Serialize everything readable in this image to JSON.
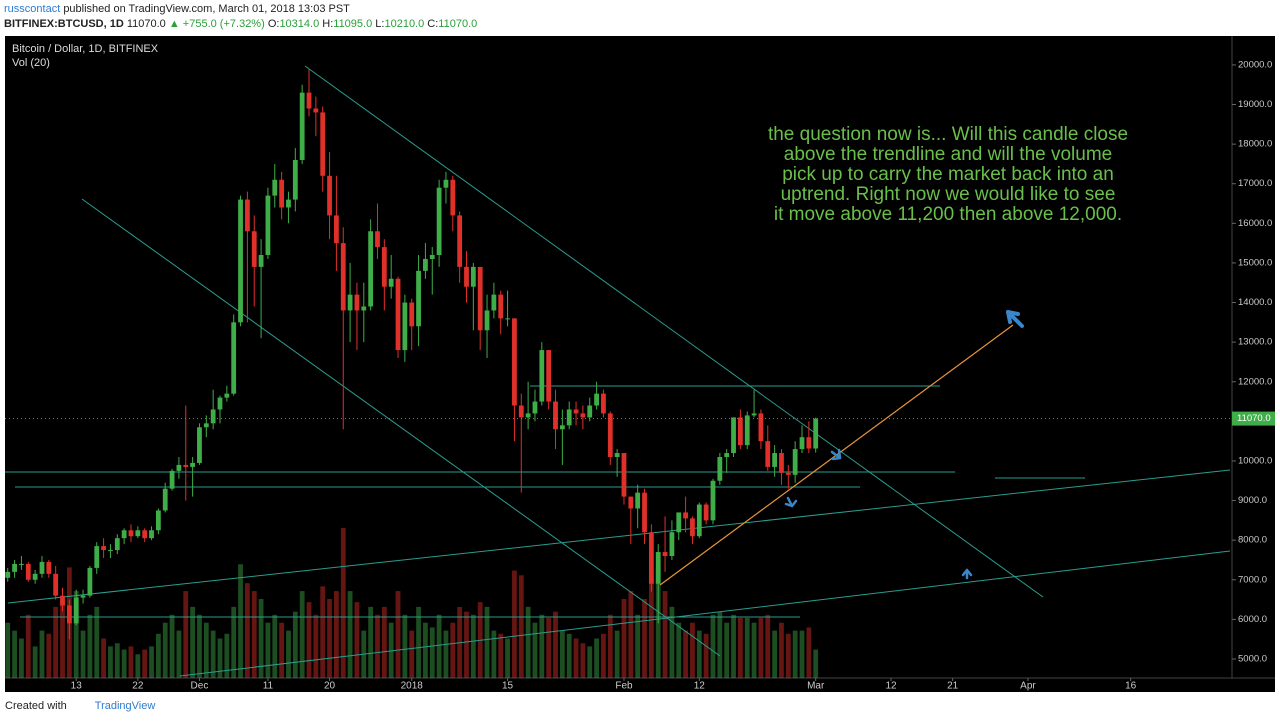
{
  "header": {
    "author": "russcontact",
    "published": "published on TradingView.com, March 01, 2018 13:03 PST",
    "symbol": "BITFINEX:BTCUSD, 1D",
    "price": "11070.0",
    "change": "▲ +755.0 (+7.32%)",
    "o_label": "O:",
    "o_value": "10314.0",
    "h_label": "H:",
    "h_value": "11095.0",
    "l_label": "L:",
    "l_value": "10210.0",
    "c_label": "C:",
    "c_value": "11070.0"
  },
  "footer": {
    "created": "Created with",
    "brand": "TradingView"
  },
  "chart_data": {
    "type": "candlestick",
    "title": "Bitcoin / Dollar, 1D, BITFINEX",
    "volume_label": "Vol (20)",
    "annotation": [
      "the question now is...  Will this candle close",
      "above the trendline and will the volume",
      "pick up to carry the market back into an",
      "uptrend.  Right now we would like to see",
      "it move above 11,200 then above 12,000."
    ],
    "up_color": "#3fae49",
    "down_color": "#e0302a",
    "open": [
      7050,
      7200,
      7400,
      7400,
      7000,
      7150,
      7450,
      7150,
      6600,
      6350,
      5900,
      6550,
      6600,
      7300,
      7850,
      7750,
      7750,
      8050,
      8250,
      8100,
      8250,
      8050,
      8250,
      8750,
      9300,
      9750,
      9900,
      9850,
      9950,
      10850,
      10950,
      11300,
      11600,
      11700,
      13500,
      16600,
      15800,
      14900,
      15200,
      16700,
      17100,
      16400,
      16600,
      17600,
      19300,
      18900,
      18800,
      17200,
      16200,
      15500,
      13800,
      14200,
      13800,
      13900,
      15800,
      15400,
      14400,
      14600,
      12800,
      14000,
      13400,
      14800,
      15100,
      15200,
      16900,
      17100,
      16200,
      14900,
      14400,
      14900,
      13300,
      13800,
      14200,
      13600,
      13600,
      11400,
      11100,
      11200,
      11500,
      12800,
      11500,
      10800,
      10900,
      11300,
      11200,
      11100,
      11400,
      11700,
      11200,
      10100,
      10200,
      9100,
      8800,
      9200,
      8200,
      6900,
      7700,
      7600,
      8200,
      8700,
      8550,
      8100,
      8900,
      8500,
      9500,
      10100,
      10200,
      11100,
      10400,
      11150,
      11200,
      10500,
      9850,
      10200,
      9700,
      9650,
      10300,
      10600,
      10314
    ],
    "high": [
      7300,
      7500,
      7600,
      7450,
      7250,
      7600,
      7500,
      7350,
      6800,
      6500,
      6750,
      6750,
      7350,
      7950,
      8050,
      7900,
      8150,
      8300,
      8400,
      8350,
      8300,
      8350,
      8800,
      9450,
      9800,
      10100,
      11400,
      10100,
      10950,
      11150,
      11800,
      11650,
      11900,
      13700,
      16700,
      16800,
      16200,
      15600,
      16900,
      17500,
      17300,
      16800,
      17900,
      19500,
      19900,
      19200,
      18950,
      17800,
      17200,
      15900,
      15000,
      14500,
      14500,
      16100,
      16500,
      15600,
      15200,
      14650,
      14200,
      14100,
      15200,
      15500,
      15400,
      17100,
      17300,
      17200,
      16300,
      15300,
      15000,
      14900,
      14200,
      14500,
      14300,
      14300,
      13600,
      11700,
      12000,
      11800,
      13000,
      12800,
      11800,
      11300,
      11500,
      11500,
      11400,
      11600,
      12000,
      11800,
      11250,
      10300,
      10200,
      9100,
      9400,
      9300,
      8400,
      7900,
      8600,
      8500,
      8700,
      9100,
      8600,
      8950,
      8950,
      9550,
      10200,
      10300,
      11100,
      11300,
      11250,
      11800,
      11300,
      10900,
      10400,
      10300,
      9900,
      10500,
      10900,
      11000,
      11095
    ],
    "low": [
      6950,
      7050,
      7250,
      6950,
      6900,
      7050,
      7050,
      6500,
      6200,
      5500,
      5850,
      6400,
      6550,
      7150,
      7550,
      7550,
      7650,
      7900,
      7950,
      8050,
      7950,
      8000,
      8150,
      8700,
      9250,
      9550,
      9000,
      9100,
      9900,
      10600,
      10800,
      10950,
      11500,
      11650,
      13400,
      13500,
      13900,
      13100,
      15100,
      16400,
      16100,
      16000,
      16300,
      17500,
      18700,
      18200,
      16800,
      15600,
      14800,
      10800,
      13000,
      12800,
      13000,
      13800,
      15100,
      13800,
      14100,
      12600,
      12500,
      12800,
      12900,
      14600,
      14200,
      14900,
      16500,
      15800,
      14500,
      14000,
      13300,
      12800,
      12600,
      13600,
      13200,
      13400,
      10500,
      9200,
      10800,
      11000,
      11400,
      11300,
      10300,
      9900,
      10800,
      10900,
      10800,
      11000,
      11300,
      11100,
      9900,
      9600,
      8900,
      7900,
      8300,
      7900,
      6700,
      5900,
      7200,
      7500,
      8000,
      8200,
      7900,
      8050,
      8400,
      8400,
      9400,
      9700,
      10100,
      10300,
      10300,
      11100,
      10300,
      9750,
      9600,
      9400,
      9300,
      9450,
      10200,
      10200,
      10210
    ],
    "close": [
      7200,
      7400,
      7400,
      7000,
      7150,
      7450,
      7150,
      6600,
      6350,
      5900,
      6550,
      6600,
      7300,
      7850,
      7750,
      7750,
      8050,
      8250,
      8100,
      8250,
      8050,
      8250,
      8750,
      9300,
      9750,
      9900,
      9850,
      9950,
      10850,
      10950,
      11300,
      11600,
      11700,
      13500,
      16600,
      15800,
      14900,
      15200,
      16700,
      17100,
      16400,
      16600,
      17600,
      19300,
      18900,
      18800,
      17200,
      16200,
      15500,
      13800,
      14200,
      13800,
      13900,
      15800,
      15400,
      14400,
      14600,
      12800,
      14000,
      13400,
      14800,
      15100,
      15200,
      16900,
      17100,
      16200,
      14900,
      14400,
      14900,
      13300,
      13800,
      14200,
      13600,
      13600,
      11400,
      11100,
      11200,
      11500,
      12800,
      11500,
      10800,
      10900,
      11300,
      11200,
      11100,
      11400,
      11700,
      11200,
      10100,
      10200,
      9100,
      8800,
      9200,
      8200,
      6900,
      7700,
      7600,
      8200,
      8700,
      8550,
      8100,
      8900,
      8500,
      9500,
      10100,
      10200,
      11100,
      10400,
      11150,
      11200,
      10500,
      9850,
      10200,
      9700,
      9650,
      10300,
      10600,
      10314,
      11070
    ],
    "volume": [
      35,
      30,
      25,
      40,
      20,
      30,
      28,
      45,
      50,
      70,
      55,
      30,
      40,
      45,
      25,
      20,
      22,
      18,
      20,
      15,
      18,
      20,
      28,
      35,
      40,
      30,
      55,
      45,
      40,
      35,
      30,
      25,
      28,
      45,
      72,
      60,
      55,
      50,
      35,
      40,
      35,
      30,
      42,
      55,
      48,
      40,
      58,
      50,
      55,
      95,
      55,
      48,
      30,
      45,
      40,
      45,
      35,
      55,
      40,
      30,
      45,
      35,
      32,
      40,
      30,
      35,
      45,
      42,
      40,
      48,
      45,
      30,
      28,
      25,
      68,
      65,
      45,
      35,
      40,
      38,
      42,
      30,
      28,
      25,
      22,
      20,
      25,
      28,
      40,
      30,
      50,
      55,
      40,
      50,
      65,
      70,
      55,
      45,
      35,
      30,
      35,
      30,
      28,
      40,
      42,
      35,
      40,
      38,
      38,
      35,
      38,
      40,
      30,
      35,
      28,
      30,
      30,
      32,
      18
    ],
    "vol_ylim": [
      0,
      100
    ],
    "last_price": {
      "value": 11070,
      "label": "11070.0"
    },
    "xlim": [
      -0.4,
      178.8
    ],
    "xticks": [
      {
        "value": 10,
        "label": "13"
      },
      {
        "value": 19,
        "label": "22"
      },
      {
        "value": 28,
        "label": "Dec"
      },
      {
        "value": 38,
        "label": "11"
      },
      {
        "value": 47,
        "label": "20"
      },
      {
        "value": 59,
        "label": "2018"
      },
      {
        "value": 73,
        "label": "15"
      },
      {
        "value": 90,
        "label": "Feb"
      },
      {
        "value": 101,
        "label": "12"
      },
      {
        "value": 118,
        "label": "Mar"
      },
      {
        "value": 129,
        "label": "12"
      },
      {
        "value": 138,
        "label": "21"
      },
      {
        "value": 149,
        "label": "Apr"
      },
      {
        "value": 164,
        "label": "16"
      }
    ],
    "ylim": [
      4520,
      20730
    ],
    "yticks": [
      {
        "value": 5000,
        "label": "5000.0"
      },
      {
        "value": 6000,
        "label": "6000.0"
      },
      {
        "value": 7000,
        "label": "7000.0"
      },
      {
        "value": 8000,
        "label": "8000.0"
      },
      {
        "value": 9000,
        "label": "9000.0"
      },
      {
        "value": 10000,
        "label": "10000.0"
      },
      {
        "value": 11000,
        "label": "11000.0"
      },
      {
        "value": 12000,
        "label": "12000.0"
      },
      {
        "value": 13000,
        "label": "13000.0"
      },
      {
        "value": 14000,
        "label": "14000.0"
      },
      {
        "value": 15000,
        "label": "15000.0"
      },
      {
        "value": 16000,
        "label": "16000.0"
      },
      {
        "value": 17000,
        "label": "17000.0"
      },
      {
        "value": 18000,
        "label": "18000.0"
      },
      {
        "value": 19000,
        "label": "19000.0"
      },
      {
        "value": 20000,
        "label": "20000.0"
      }
    ]
  }
}
